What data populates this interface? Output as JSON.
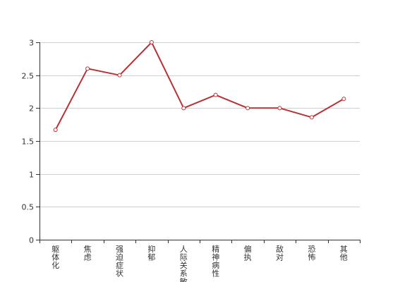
{
  "chart_data": {
    "type": "line",
    "title": "",
    "xlabel": "",
    "ylabel": "",
    "categories": [
      "躯体化",
      "焦虑",
      "强迫症状",
      "抑郁",
      "人际关系敏感",
      "精神病性",
      "偏执",
      "敌对",
      "恐怖",
      "其他"
    ],
    "series": [
      {
        "values": [
          1.67,
          2.6,
          2.5,
          3.0,
          2.0,
          2.2,
          2.0,
          2.0,
          1.86,
          2.14
        ]
      }
    ],
    "ylim": [
      0,
      3
    ],
    "yticks": [
      "0",
      "0.5",
      "1",
      "1.5",
      "2",
      "2.5",
      "3"
    ],
    "grid": true,
    "legend": "none",
    "colors": {
      "line": "#b83235",
      "point_fill": "#ffffff",
      "grid": "#cfcfcf",
      "axis": "#333333"
    }
  }
}
